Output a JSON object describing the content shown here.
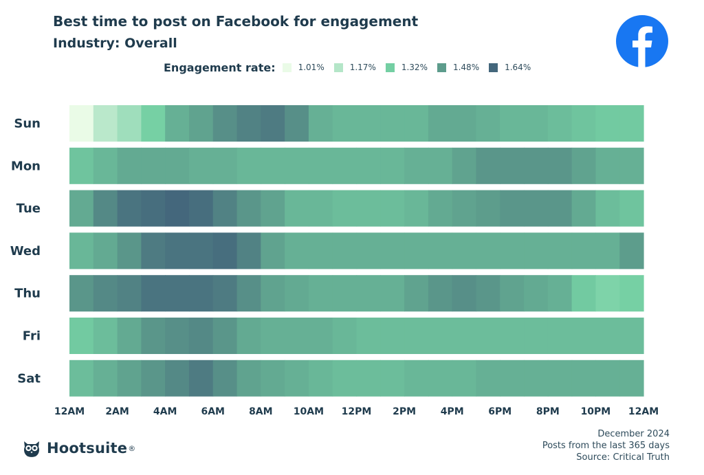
{
  "title": "Best time to post on Facebook for engagement",
  "subtitle": "Industry: Overall",
  "legend": {
    "title": "Engagement rate:",
    "items": [
      {
        "label": "1.01%",
        "color": "#eafbe7"
      },
      {
        "label": "1.17%",
        "color": "#b4e6c8"
      },
      {
        "label": "1.32%",
        "color": "#74cfa3"
      },
      {
        "label": "1.48%",
        "color": "#5d9c8c"
      },
      {
        "label": "1.64%",
        "color": "#44677c"
      }
    ]
  },
  "chart_data": {
    "type": "heatmap",
    "title": "Best time to post on Facebook for engagement",
    "subtitle": "Industry: Overall",
    "rows": [
      "Sun",
      "Mon",
      "Tue",
      "Wed",
      "Thu",
      "Fri",
      "Sat"
    ],
    "x_tick_labels": [
      "12AM",
      "2AM",
      "4AM",
      "6AM",
      "8AM",
      "10AM",
      "12PM",
      "2PM",
      "4PM",
      "6PM",
      "8PM",
      "10PM",
      "12AM"
    ],
    "hours": 24,
    "value_range": [
      1.01,
      1.64
    ],
    "unit": "%",
    "values": [
      [
        1.01,
        1.15,
        1.22,
        1.32,
        1.42,
        1.46,
        1.52,
        1.56,
        1.58,
        1.52,
        1.42,
        1.4,
        1.4,
        1.4,
        1.4,
        1.44,
        1.44,
        1.42,
        1.4,
        1.4,
        1.38,
        1.36,
        1.34,
        1.34
      ],
      [
        1.36,
        1.4,
        1.44,
        1.44,
        1.44,
        1.42,
        1.42,
        1.4,
        1.4,
        1.4,
        1.4,
        1.4,
        1.4,
        1.4,
        1.42,
        1.42,
        1.46,
        1.5,
        1.5,
        1.5,
        1.5,
        1.46,
        1.42,
        1.42
      ],
      [
        1.44,
        1.54,
        1.6,
        1.62,
        1.64,
        1.62,
        1.56,
        1.5,
        1.46,
        1.4,
        1.4,
        1.38,
        1.38,
        1.38,
        1.4,
        1.44,
        1.46,
        1.48,
        1.5,
        1.5,
        1.5,
        1.44,
        1.38,
        1.36
      ],
      [
        1.4,
        1.44,
        1.5,
        1.58,
        1.6,
        1.6,
        1.62,
        1.56,
        1.46,
        1.42,
        1.42,
        1.42,
        1.42,
        1.42,
        1.42,
        1.42,
        1.42,
        1.42,
        1.42,
        1.42,
        1.42,
        1.42,
        1.42,
        1.48
      ],
      [
        1.5,
        1.54,
        1.56,
        1.6,
        1.6,
        1.6,
        1.58,
        1.52,
        1.46,
        1.44,
        1.42,
        1.42,
        1.42,
        1.42,
        1.46,
        1.5,
        1.52,
        1.5,
        1.46,
        1.44,
        1.42,
        1.34,
        1.3,
        1.32
      ],
      [
        1.34,
        1.38,
        1.44,
        1.5,
        1.52,
        1.54,
        1.5,
        1.44,
        1.42,
        1.42,
        1.42,
        1.4,
        1.38,
        1.38,
        1.38,
        1.38,
        1.38,
        1.38,
        1.38,
        1.38,
        1.38,
        1.38,
        1.38,
        1.38
      ],
      [
        1.38,
        1.42,
        1.46,
        1.5,
        1.54,
        1.58,
        1.52,
        1.46,
        1.44,
        1.42,
        1.4,
        1.38,
        1.38,
        1.38,
        1.4,
        1.4,
        1.4,
        1.42,
        1.42,
        1.42,
        1.42,
        1.42,
        1.42,
        1.42
      ]
    ]
  },
  "brand": {
    "name": "Hootsuite",
    "mark": "®"
  },
  "footer": {
    "date": "December 2024",
    "period": "Posts from the last 365 days",
    "source": "Source: Critical Truth"
  },
  "icons": {
    "platform": "facebook-logo-icon",
    "brand": "hootsuite-owl-icon"
  }
}
